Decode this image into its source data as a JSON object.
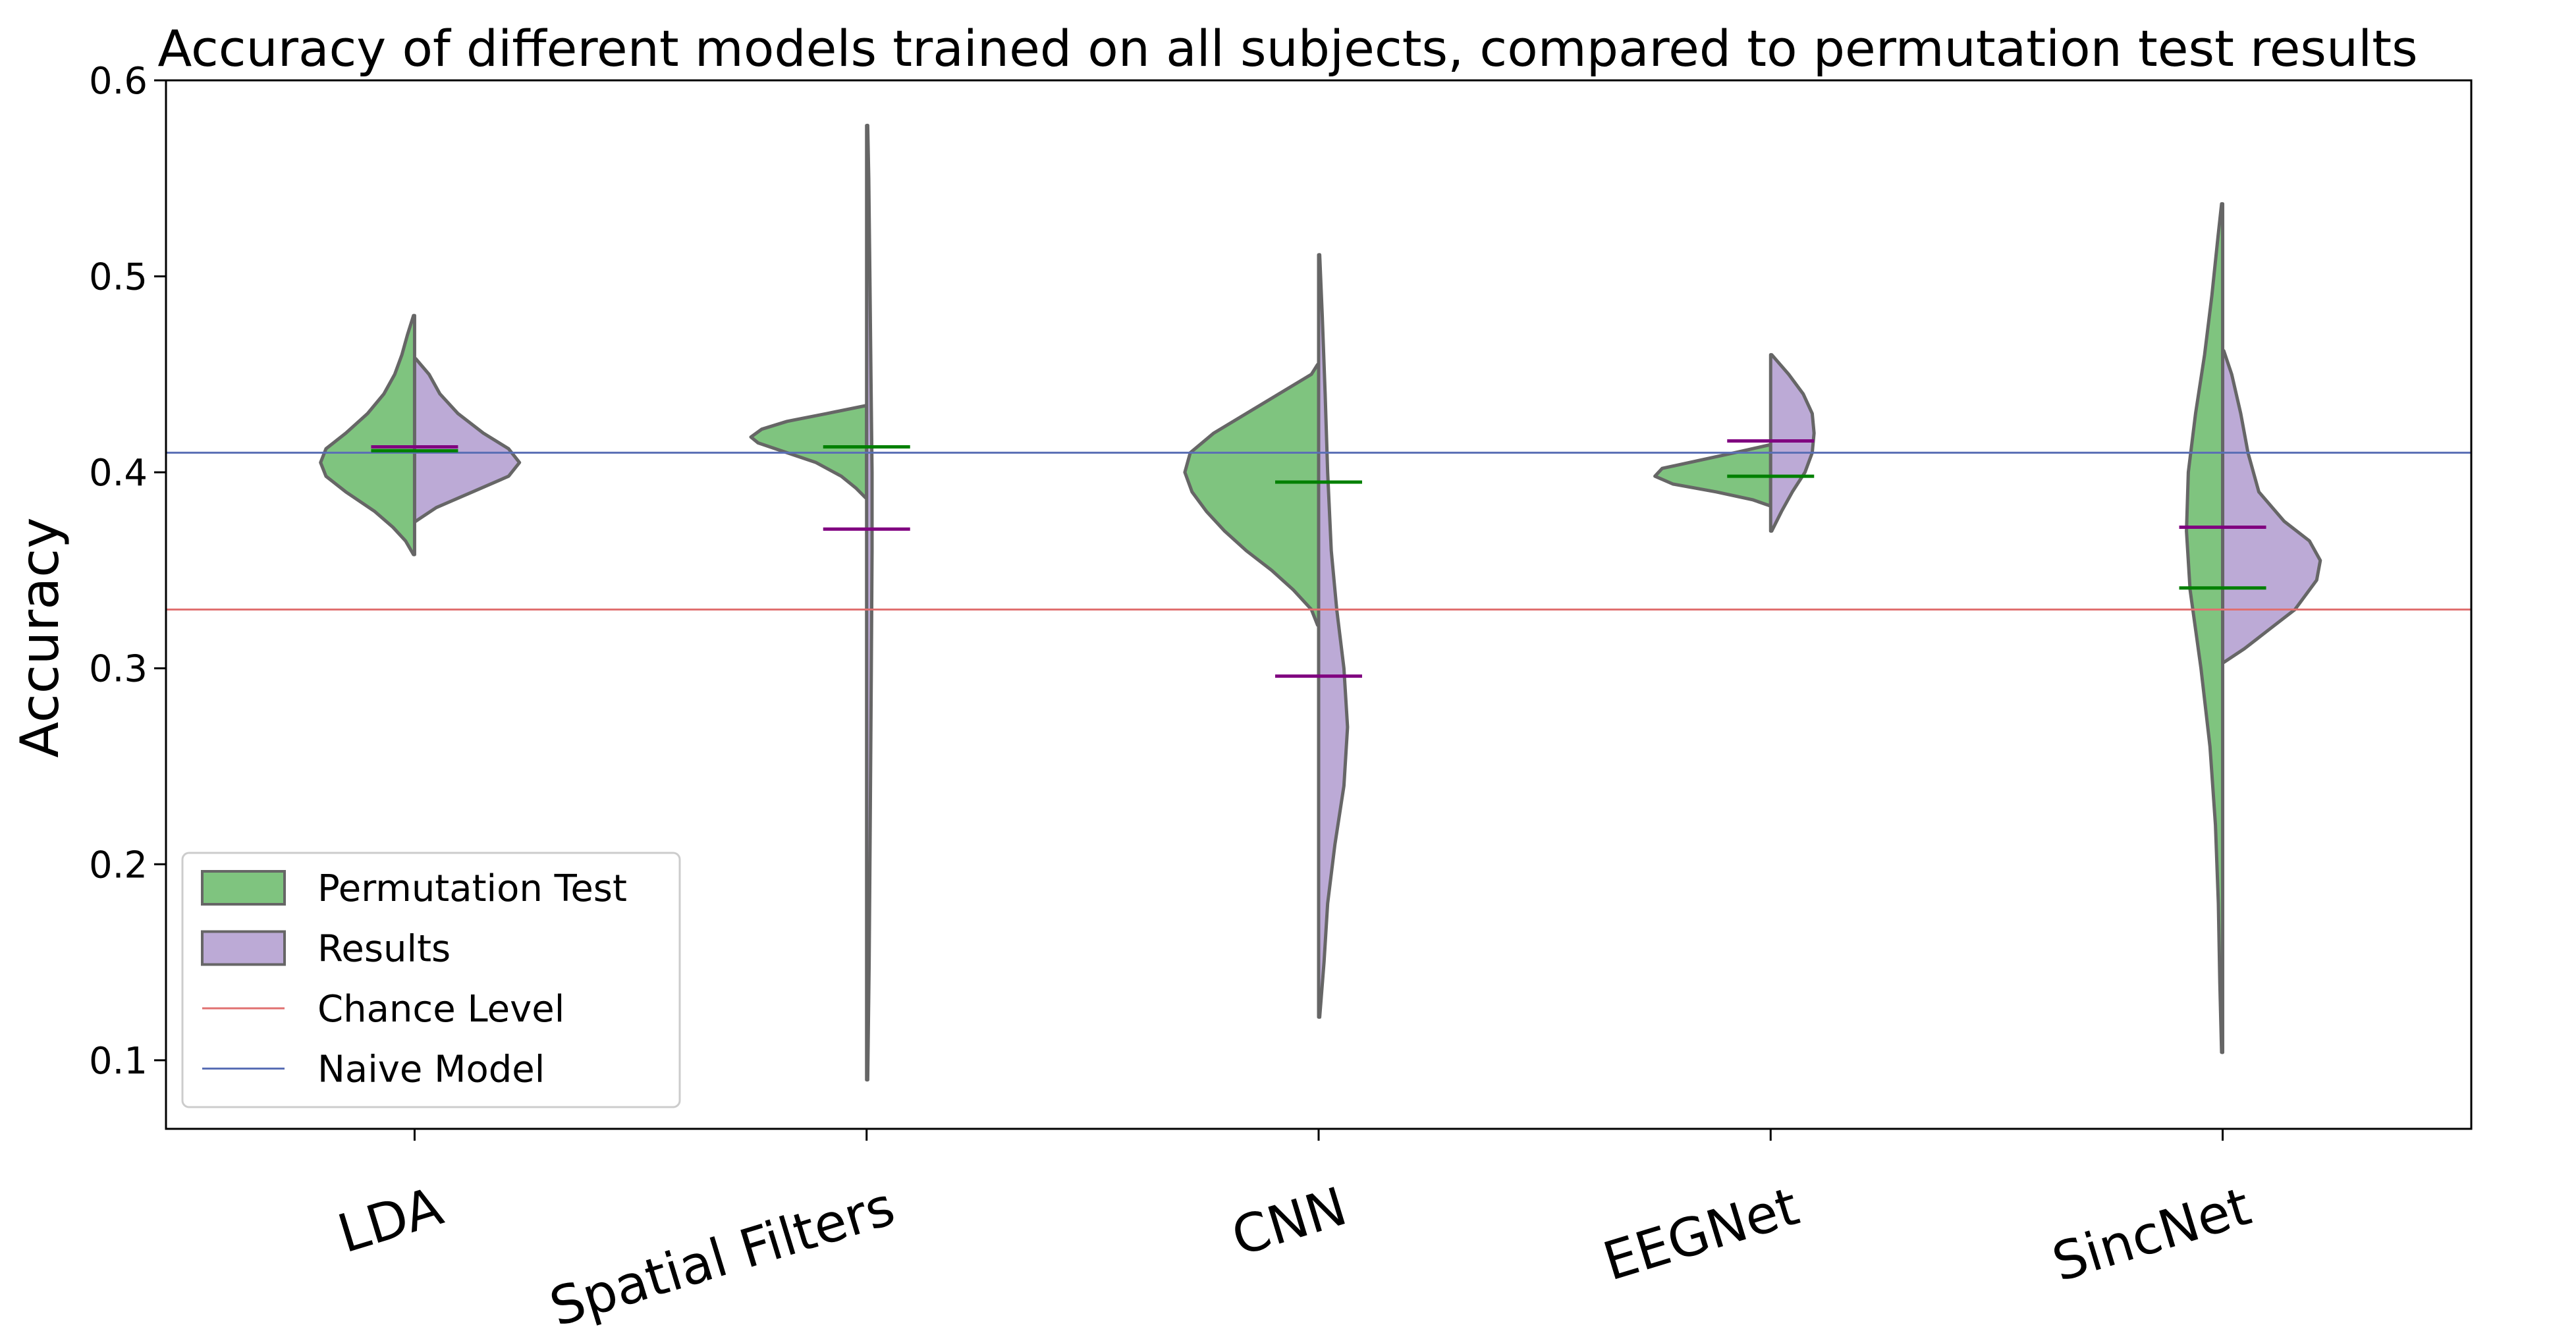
{
  "chart_data": {
    "type": "violin",
    "title": "Accuracy of different models trained on all subjects, compared to permutation test results",
    "ylabel": "Accuracy",
    "ylim": [
      0.065,
      0.6
    ],
    "yticks": [
      "0.1",
      "0.2",
      "0.3",
      "0.4",
      "0.5",
      "0.6"
    ],
    "categories": [
      "LDA",
      "Spatial Filters",
      "CNN",
      "EEGNet",
      "SincNet"
    ],
    "series": [
      {
        "name": "Permutation Test",
        "color": "#7fc47f",
        "mean_color": "#008000",
        "side": "left",
        "violins": [
          {
            "min": 0.358,
            "max": 0.48,
            "mean": 0.411,
            "profile": [
              [
                0.358,
                0.003
              ],
              [
                0.365,
                0.025
              ],
              [
                0.372,
                0.06
              ],
              [
                0.38,
                0.11
              ],
              [
                0.39,
                0.19
              ],
              [
                0.398,
                0.245
              ],
              [
                0.405,
                0.26
              ],
              [
                0.412,
                0.245
              ],
              [
                0.42,
                0.19
              ],
              [
                0.43,
                0.13
              ],
              [
                0.44,
                0.085
              ],
              [
                0.45,
                0.055
              ],
              [
                0.46,
                0.035
              ],
              [
                0.47,
                0.02
              ],
              [
                0.48,
                0.003
              ]
            ]
          },
          {
            "min": 0.387,
            "max": 0.434,
            "mean": 0.413,
            "profile": [
              [
                0.387,
                0.003
              ],
              [
                0.392,
                0.03
              ],
              [
                0.398,
                0.07
              ],
              [
                0.405,
                0.14
              ],
              [
                0.41,
                0.22
              ],
              [
                0.415,
                0.3
              ],
              [
                0.418,
                0.32
              ],
              [
                0.422,
                0.29
              ],
              [
                0.426,
                0.22
              ],
              [
                0.43,
                0.11
              ],
              [
                0.434,
                0.003
              ]
            ]
          },
          {
            "min": 0.322,
            "max": 0.455,
            "mean": 0.395,
            "profile": [
              [
                0.322,
                0.003
              ],
              [
                0.33,
                0.02
              ],
              [
                0.34,
                0.07
              ],
              [
                0.35,
                0.13
              ],
              [
                0.36,
                0.2
              ],
              [
                0.37,
                0.26
              ],
              [
                0.38,
                0.31
              ],
              [
                0.39,
                0.35
              ],
              [
                0.4,
                0.37
              ],
              [
                0.41,
                0.355
              ],
              [
                0.42,
                0.29
              ],
              [
                0.43,
                0.2
              ],
              [
                0.44,
                0.11
              ],
              [
                0.45,
                0.02
              ],
              [
                0.455,
                0.003
              ]
            ]
          },
          {
            "min": 0.383,
            "max": 0.414,
            "mean": 0.398,
            "profile": [
              [
                0.383,
                0.003
              ],
              [
                0.386,
                0.05
              ],
              [
                0.39,
                0.15
              ],
              [
                0.394,
                0.27
              ],
              [
                0.398,
                0.32
              ],
              [
                0.402,
                0.3
              ],
              [
                0.406,
                0.2
              ],
              [
                0.41,
                0.1
              ],
              [
                0.414,
                0.003
              ]
            ]
          },
          {
            "min": 0.104,
            "max": 0.537,
            "mean": 0.341,
            "profile": [
              [
                0.104,
                0.003
              ],
              [
                0.14,
                0.008
              ],
              [
                0.18,
                0.012
              ],
              [
                0.22,
                0.02
              ],
              [
                0.26,
                0.035
              ],
              [
                0.3,
                0.06
              ],
              [
                0.34,
                0.09
              ],
              [
                0.37,
                0.1
              ],
              [
                0.4,
                0.095
              ],
              [
                0.43,
                0.075
              ],
              [
                0.46,
                0.05
              ],
              [
                0.49,
                0.03
              ],
              [
                0.52,
                0.013
              ],
              [
                0.537,
                0.003
              ]
            ]
          }
        ]
      },
      {
        "name": "Results",
        "color": "#bcaad6",
        "mean_color": "#800080",
        "side": "right",
        "violins": [
          {
            "min": 0.375,
            "max": 0.458,
            "mean": 0.413,
            "profile": [
              [
                0.375,
                0.003
              ],
              [
                0.382,
                0.06
              ],
              [
                0.39,
                0.16
              ],
              [
                0.398,
                0.26
              ],
              [
                0.405,
                0.29
              ],
              [
                0.412,
                0.26
              ],
              [
                0.42,
                0.19
              ],
              [
                0.43,
                0.12
              ],
              [
                0.44,
                0.07
              ],
              [
                0.45,
                0.04
              ],
              [
                0.458,
                0.003
              ]
            ]
          },
          {
            "min": 0.09,
            "max": 0.577,
            "mean": 0.371,
            "profile": [
              [
                0.09,
                0.003
              ],
              [
                0.15,
                0.007
              ],
              [
                0.22,
                0.01
              ],
              [
                0.3,
                0.013
              ],
              [
                0.36,
                0.015
              ],
              [
                0.4,
                0.015
              ],
              [
                0.45,
                0.012
              ],
              [
                0.5,
                0.009
              ],
              [
                0.55,
                0.006
              ],
              [
                0.577,
                0.003
              ]
            ]
          },
          {
            "min": 0.122,
            "max": 0.511,
            "mean": 0.296,
            "profile": [
              [
                0.122,
                0.003
              ],
              [
                0.15,
                0.015
              ],
              [
                0.18,
                0.025
              ],
              [
                0.21,
                0.045
              ],
              [
                0.24,
                0.07
              ],
              [
                0.27,
                0.08
              ],
              [
                0.3,
                0.07
              ],
              [
                0.33,
                0.05
              ],
              [
                0.36,
                0.035
              ],
              [
                0.4,
                0.025
              ],
              [
                0.44,
                0.018
              ],
              [
                0.48,
                0.01
              ],
              [
                0.511,
                0.003
              ]
            ]
          },
          {
            "min": 0.37,
            "max": 0.46,
            "mean": 0.416,
            "profile": [
              [
                0.37,
                0.003
              ],
              [
                0.38,
                0.03
              ],
              [
                0.39,
                0.06
              ],
              [
                0.4,
                0.095
              ],
              [
                0.41,
                0.115
              ],
              [
                0.42,
                0.12
              ],
              [
                0.43,
                0.115
              ],
              [
                0.44,
                0.09
              ],
              [
                0.45,
                0.05
              ],
              [
                0.46,
                0.003
              ]
            ]
          },
          {
            "min": 0.303,
            "max": 0.462,
            "mean": 0.372,
            "profile": [
              [
                0.303,
                0.003
              ],
              [
                0.31,
                0.06
              ],
              [
                0.32,
                0.13
              ],
              [
                0.33,
                0.2
              ],
              [
                0.345,
                0.26
              ],
              [
                0.355,
                0.27
              ],
              [
                0.365,
                0.24
              ],
              [
                0.375,
                0.17
              ],
              [
                0.39,
                0.1
              ],
              [
                0.41,
                0.07
              ],
              [
                0.43,
                0.05
              ],
              [
                0.45,
                0.025
              ],
              [
                0.462,
                0.003
              ]
            ]
          }
        ]
      }
    ],
    "reference_lines": [
      {
        "name": "Chance Level",
        "y": 0.33,
        "color": "#e07070"
      },
      {
        "name": "Naive Model",
        "y": 0.41,
        "color": "#5a6fb5"
      }
    ],
    "legend": {
      "position": "lower-left",
      "entries": [
        "Permutation Test",
        "Results",
        "Chance Level",
        "Naive Model"
      ]
    },
    "grid": false
  }
}
